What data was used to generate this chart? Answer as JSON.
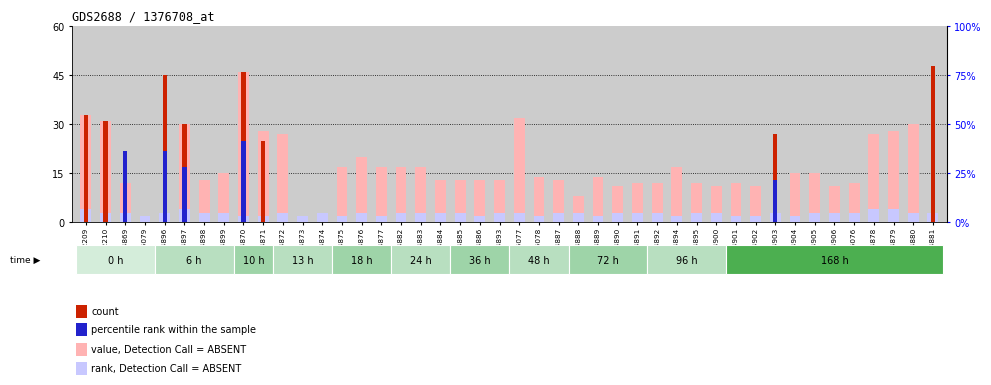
{
  "title": "GDS2688 / 1376708_at",
  "samples": [
    "GSM112209",
    "GSM112210",
    "GSM114869",
    "GSM115079",
    "GSM114896",
    "GSM114897",
    "GSM114898",
    "GSM114899",
    "GSM114870",
    "GSM114871",
    "GSM114872",
    "GSM114873",
    "GSM114874",
    "GSM114875",
    "GSM114876",
    "GSM114877",
    "GSM114882",
    "GSM114883",
    "GSM114884",
    "GSM114885",
    "GSM114886",
    "GSM114893",
    "GSM115077",
    "GSM115078",
    "GSM114887",
    "GSM114888",
    "GSM114889",
    "GSM114890",
    "GSM114891",
    "GSM114892",
    "GSM114894",
    "GSM114895",
    "GSM114900",
    "GSM114901",
    "GSM114902",
    "GSM114903",
    "GSM114904",
    "GSM114905",
    "GSM114906",
    "GSM115076",
    "GSM114878",
    "GSM114879",
    "GSM114880",
    "GSM114881"
  ],
  "time_groups": [
    {
      "label": "0 h",
      "start": 0,
      "end": 4,
      "color": "#d4edda"
    },
    {
      "label": "6 h",
      "start": 4,
      "end": 8,
      "color": "#b8dfc0"
    },
    {
      "label": "10 h",
      "start": 8,
      "end": 10,
      "color": "#9ed4a8"
    },
    {
      "label": "13 h",
      "start": 10,
      "end": 13,
      "color": "#b8dfc0"
    },
    {
      "label": "18 h",
      "start": 13,
      "end": 16,
      "color": "#9ed4a8"
    },
    {
      "label": "24 h",
      "start": 16,
      "end": 19,
      "color": "#b8dfc0"
    },
    {
      "label": "36 h",
      "start": 19,
      "end": 22,
      "color": "#9ed4a8"
    },
    {
      "label": "48 h",
      "start": 22,
      "end": 25,
      "color": "#b8dfc0"
    },
    {
      "label": "72 h",
      "start": 25,
      "end": 29,
      "color": "#9ed4a8"
    },
    {
      "label": "96 h",
      "start": 29,
      "end": 33,
      "color": "#b8dfc0"
    },
    {
      "label": "168 h",
      "start": 33,
      "end": 44,
      "color": "#4caf50"
    }
  ],
  "count_values": [
    33,
    31,
    0,
    0,
    45,
    30,
    0,
    0,
    46,
    25,
    0,
    0,
    0,
    0,
    0,
    0,
    0,
    0,
    0,
    0,
    0,
    0,
    0,
    0,
    0,
    0,
    0,
    0,
    0,
    0,
    0,
    0,
    0,
    0,
    0,
    27,
    0,
    0,
    0,
    0,
    0,
    0,
    0,
    48
  ],
  "pink_values": [
    33,
    31,
    12,
    0,
    0,
    30,
    13,
    15,
    46,
    28,
    27,
    0,
    0,
    17,
    20,
    17,
    17,
    17,
    13,
    13,
    13,
    13,
    32,
    14,
    13,
    8,
    14,
    11,
    12,
    12,
    17,
    12,
    11,
    12,
    11,
    0,
    15,
    15,
    11,
    12,
    27,
    28,
    30,
    0
  ],
  "blue_rank_values": [
    4,
    3,
    3,
    2,
    3,
    4,
    3,
    3,
    2,
    2,
    3,
    2,
    3,
    2,
    3,
    2,
    3,
    3,
    3,
    3,
    2,
    3,
    3,
    2,
    3,
    3,
    2,
    3,
    3,
    3,
    2,
    3,
    3,
    2,
    2,
    3,
    2,
    3,
    3,
    3,
    4,
    4,
    3,
    3
  ],
  "blue_square_values": [
    0,
    0,
    22,
    0,
    22,
    17,
    0,
    0,
    25,
    0,
    0,
    0,
    0,
    0,
    0,
    0,
    0,
    0,
    0,
    0,
    0,
    0,
    0,
    0,
    0,
    0,
    0,
    0,
    0,
    0,
    0,
    0,
    0,
    0,
    0,
    13,
    0,
    0,
    0,
    0,
    0,
    0,
    0,
    0
  ],
  "ylim": [
    0,
    60
  ],
  "yticks": [
    0,
    15,
    30,
    45,
    60
  ],
  "y2ticks": [
    0,
    25,
    50,
    75,
    100
  ],
  "count_color": "#cc2200",
  "pink_color": "#ffb3b3",
  "blue_rank_color": "#c8c8ff",
  "blue_sq_color": "#2222cc",
  "bg_color": "#cccccc",
  "fig_bg": "#ffffff",
  "legend_items": [
    {
      "color": "#cc2200",
      "label": "count"
    },
    {
      "color": "#2222cc",
      "label": "percentile rank within the sample"
    },
    {
      "color": "#ffb3b3",
      "label": "value, Detection Call = ABSENT"
    },
    {
      "color": "#c8c8ff",
      "label": "rank, Detection Call = ABSENT"
    }
  ]
}
